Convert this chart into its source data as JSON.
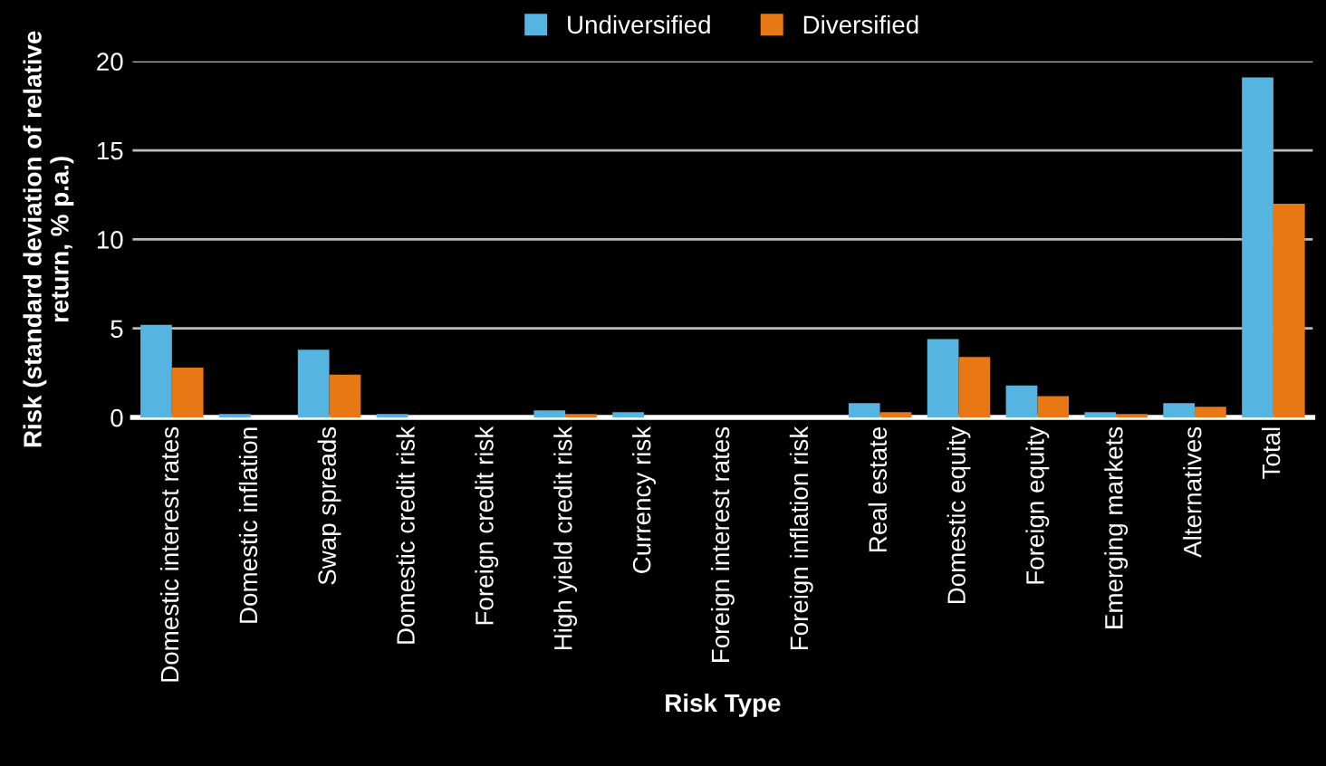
{
  "chart_data": {
    "type": "bar",
    "categories": [
      "Domestic interest rates",
      "Domestic inflation",
      "Swap spreads",
      "Domestic credit risk",
      "Foreign credit risk",
      "High yield credit risk",
      "Currency risk",
      "Foreign interest rates",
      "Foreign inflation risk",
      "Real estate",
      "Domestic equity",
      "Foreign equity",
      "Emerging markets",
      "Alternatives",
      "Total"
    ],
    "series": [
      {
        "name": "Undiversified",
        "color": "#56b4e0",
        "values": [
          5.2,
          0.2,
          3.8,
          0.2,
          0,
          0.4,
          0.3,
          0,
          0,
          0.8,
          4.4,
          1.8,
          0.3,
          0.8,
          19.1
        ]
      },
      {
        "name": "Diversified",
        "color": "#e87814",
        "values": [
          2.8,
          0,
          2.4,
          0,
          0,
          0.2,
          0,
          0,
          0,
          0.3,
          3.4,
          1.2,
          0.2,
          0.6,
          12
        ]
      }
    ],
    "xlabel": "Risk Type",
    "ylabel": "Risk (standard deviation of relative return, % p.a.)",
    "ylim": [
      0,
      20
    ],
    "yticks": [
      0,
      5,
      10,
      15,
      20
    ],
    "grid": "y",
    "legend": "top"
  }
}
